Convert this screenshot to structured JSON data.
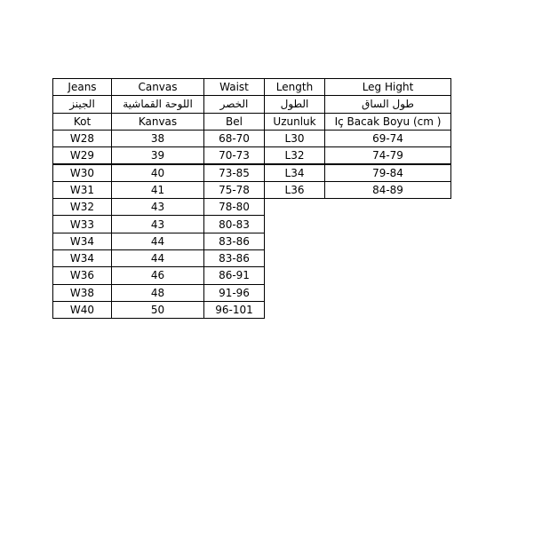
{
  "table": {
    "rows": [
      [
        "Jeans",
        "Canvas",
        "Waist",
        "Length",
        "Leg Hight"
      ],
      [
        "الجينز",
        "اللوحة القماشية",
        "الخصر",
        "الطول",
        "طول الساق"
      ],
      [
        "Kot",
        "Kanvas",
        "Bel",
        "Uzunluk",
        "Iç Bacak Boyu (cm )"
      ],
      [
        "W28",
        "38",
        "68-70",
        "L30",
        "69-74"
      ],
      [
        "W29",
        "39",
        "70-73",
        "L32",
        "74-79"
      ],
      [
        "W30",
        "40",
        "73-85",
        "L34",
        "79-84"
      ],
      [
        "W31",
        "41",
        "75-78",
        "L36",
        "84-89"
      ],
      [
        "W32",
        "43",
        "78-80"
      ],
      [
        "W33",
        "43",
        "80-83"
      ],
      [
        "W34",
        "44",
        "83-86"
      ],
      [
        "W34",
        "44",
        "83-86"
      ],
      [
        "W36",
        "46",
        "86-91"
      ],
      [
        "W38",
        "48",
        "91-96"
      ],
      [
        "W40",
        "50",
        "96-101"
      ]
    ]
  }
}
